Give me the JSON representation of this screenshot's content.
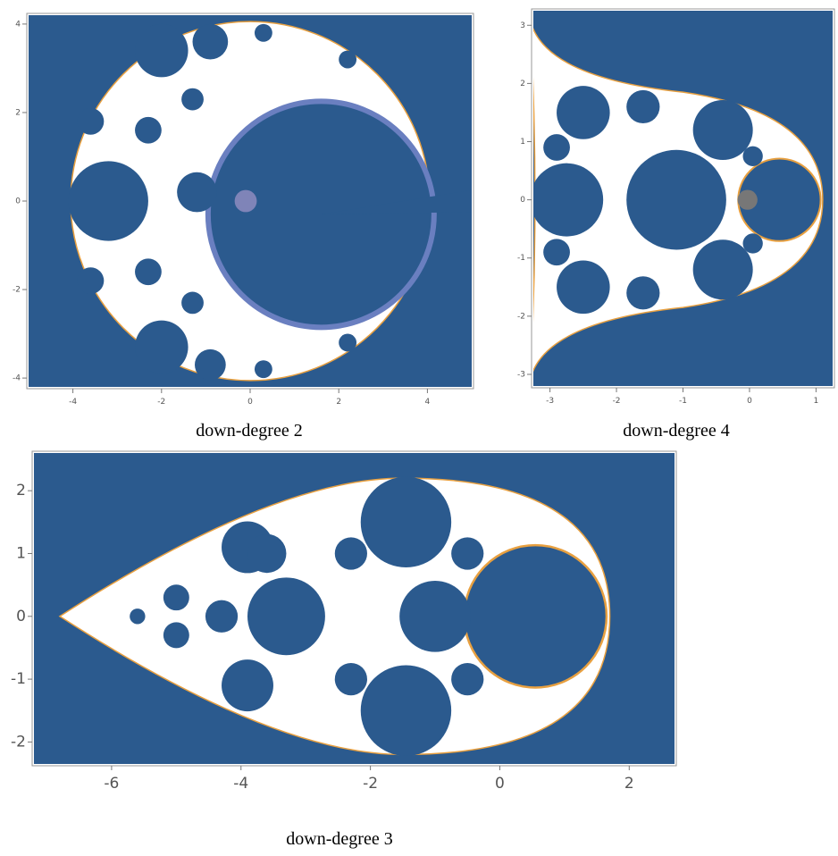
{
  "plots": [
    {
      "caption": "down-degree 2",
      "xlim": [
        -5,
        5
      ],
      "ylim": [
        -4.2,
        4.2
      ],
      "xticks": [
        -4,
        -2,
        0,
        2,
        4
      ],
      "yticks": [
        -4,
        -2,
        0,
        2,
        4
      ]
    },
    {
      "caption": "down-degree 4",
      "xlim": [
        -3.25,
        1.25
      ],
      "ylim": [
        -3.2,
        3.25
      ],
      "xticks": [
        -3,
        -2,
        -1,
        0,
        1
      ],
      "yticks": [
        -3,
        -2,
        -1,
        0,
        1,
        2,
        3
      ]
    },
    {
      "caption": "down-degree 3",
      "xlim": [
        -7.2,
        2.7
      ],
      "ylim": [
        -2.35,
        2.6
      ],
      "xticks": [
        -6,
        -4,
        -2,
        0,
        2
      ],
      "yticks": [
        -2,
        -1,
        0,
        1,
        2
      ]
    }
  ]
}
